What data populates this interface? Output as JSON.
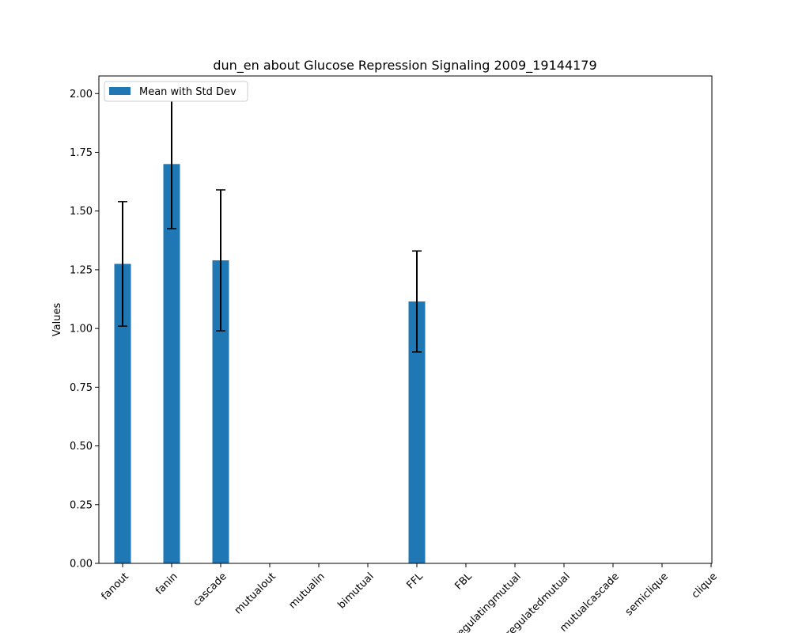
{
  "chart_data": {
    "type": "bar",
    "title": "dun_en about Glucose Repression Signaling 2009_19144179",
    "xlabel": "",
    "ylabel": "Values",
    "categories": [
      "fanout",
      "fanin",
      "cascade",
      "mutualout",
      "mutualin",
      "bimutual",
      "FFL",
      "FBL",
      "regulatingmutual",
      "regulatedmutual",
      "mutualcascade",
      "semiclique",
      "clique"
    ],
    "series": [
      {
        "name": "Mean with Std Dev",
        "values": [
          1.275,
          1.7,
          1.29,
          0,
          0,
          0,
          1.115,
          0,
          0,
          0,
          0,
          0,
          0
        ],
        "errors": [
          0.265,
          0.275,
          0.3,
          0,
          0,
          0,
          0.215,
          0,
          0,
          0,
          0,
          0,
          0
        ]
      }
    ],
    "yticks": [
      "0.00",
      "0.25",
      "0.50",
      "0.75",
      "1.00",
      "1.25",
      "1.50",
      "1.75",
      "2.00"
    ],
    "ylim": [
      0,
      2.075
    ],
    "grid": false,
    "legend_position": "upper-left",
    "bar_color": "#1f77b4",
    "error_color": "#000000"
  }
}
